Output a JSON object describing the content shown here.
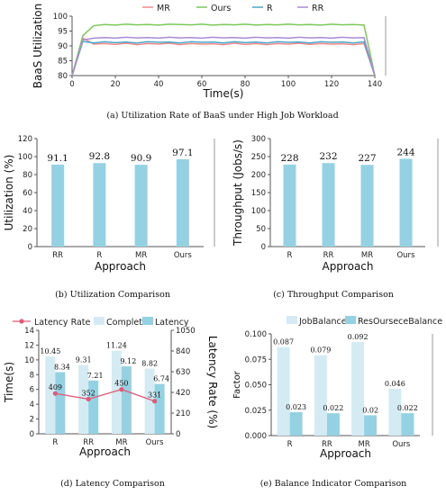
{
  "colors": {
    "mr": "#f08a8a",
    "ours": "#7ac95a",
    "r": "#4ba7c9",
    "rr": "#a98bd6",
    "bar": "#94d1e2",
    "bar_light": "#d4ebf4",
    "latency_rate": "#e05a78",
    "axis": "#555555"
  },
  "captions": {
    "a": "(a) Utilization Rate of BaaS under High Job Workload",
    "b": "(b) Utilization Comparison",
    "c": "(c) Throughput Comparison",
    "d": "(d) Latency Comparison",
    "e": "(e) Balance Indicator Comparison"
  },
  "chart_data": [
    {
      "id": "a",
      "type": "line",
      "title": "",
      "xlabel": "Time(s)",
      "ylabel": "BaaS Utilization",
      "xlim": [
        0,
        140
      ],
      "ylim": [
        80,
        100
      ],
      "xticks": [
        "0",
        "20",
        "40",
        "60",
        "80",
        "100",
        "120",
        "140"
      ],
      "yticks": [
        "80",
        "85",
        "90",
        "95",
        "100"
      ],
      "legend_position": "top",
      "x": [
        0,
        5,
        10,
        15,
        20,
        25,
        30,
        35,
        40,
        45,
        50,
        55,
        60,
        65,
        70,
        75,
        80,
        85,
        90,
        95,
        100,
        105,
        110,
        115,
        120,
        125,
        130,
        135,
        140
      ],
      "series": [
        {
          "name": "MR",
          "color_key": "mr",
          "values": [
            80,
            92.6,
            90.6,
            90.8,
            90.5,
            90.9,
            90.4,
            90.8,
            90.6,
            90.9,
            90.4,
            90.8,
            90.6,
            90.7,
            90.4,
            90.9,
            90.5,
            90.8,
            90.4,
            90.8,
            90.6,
            90.9,
            90.5,
            90.8,
            90.6,
            90.7,
            90.4,
            90.8,
            80
          ]
        },
        {
          "name": "Ours",
          "color_key": "ours",
          "values": [
            80,
            93.5,
            96.8,
            97.2,
            97.0,
            97.3,
            97.1,
            97.2,
            97.0,
            97.3,
            97.2,
            97.1,
            97.3,
            97.0,
            97.2,
            97.1,
            97.3,
            97.0,
            97.2,
            97.1,
            97.3,
            97.1,
            97.2,
            97.0,
            97.3,
            97.1,
            97.2,
            97.0,
            80
          ]
        },
        {
          "name": "R",
          "color_key": "r",
          "values": [
            80,
            91.5,
            91.0,
            91.4,
            91.1,
            91.3,
            91.0,
            91.4,
            91.2,
            91.3,
            91.0,
            91.4,
            91.2,
            91.3,
            91.0,
            91.4,
            91.1,
            91.3,
            91.0,
            91.4,
            91.2,
            91.3,
            91.0,
            91.4,
            91.2,
            91.3,
            91.0,
            91.4,
            80
          ]
        },
        {
          "name": "RR",
          "color_key": "rr",
          "values": [
            80,
            92.0,
            92.6,
            92.8,
            92.6,
            92.9,
            92.7,
            92.8,
            92.6,
            92.9,
            92.7,
            92.8,
            92.6,
            92.9,
            92.7,
            92.8,
            92.6,
            92.9,
            92.7,
            92.8,
            92.6,
            92.9,
            92.7,
            92.8,
            92.6,
            92.9,
            92.7,
            92.8,
            80
          ]
        }
      ]
    },
    {
      "id": "b",
      "type": "bar",
      "title": "",
      "xlabel": "Approach",
      "ylabel": "Utilization (%)",
      "ylim": [
        0,
        120
      ],
      "yticks": [
        "0",
        "20",
        "40",
        "60",
        "80",
        "100",
        "120"
      ],
      "categories": [
        "RR",
        "R",
        "MR",
        "Ours"
      ],
      "values": [
        91.1,
        92.8,
        90.9,
        97.1
      ],
      "labels": [
        "91.1",
        "92.8",
        "90.9",
        "97.1"
      ]
    },
    {
      "id": "c",
      "type": "bar",
      "title": "",
      "xlabel": "Approach",
      "ylabel": "Throughput (Jobs/s)",
      "ylim": [
        0,
        300
      ],
      "yticks": [
        "0",
        "50",
        "100",
        "150",
        "200",
        "250",
        "300"
      ],
      "categories": [
        "R",
        "RR",
        "MR",
        "Ours"
      ],
      "values": [
        228,
        232,
        227,
        244
      ],
      "labels": [
        "228",
        "232",
        "227",
        "244"
      ]
    },
    {
      "id": "d",
      "type": "bar",
      "title": "",
      "xlabel": "Approach",
      "ylabel": "Time(s)",
      "ylabel_right": "Latency Rate (%)",
      "ylim": [
        0,
        14
      ],
      "ylim_right": [
        0,
        1050
      ],
      "yticks": [
        "0",
        "2",
        "4",
        "6",
        "8",
        "10",
        "12",
        "14"
      ],
      "yticks_right": [
        "0",
        "210",
        "420",
        "630",
        "840",
        "1050"
      ],
      "legend_position": "top",
      "categories": [
        "R",
        "RR",
        "MR",
        "Ours"
      ],
      "series": [
        {
          "name": "Complete",
          "kind": "bar",
          "color_key": "bar_light",
          "values": [
            10.45,
            9.31,
            11.24,
            8.82
          ],
          "labels": [
            "10.45",
            "9.31",
            "11.24",
            "8.82"
          ]
        },
        {
          "name": "Latency",
          "kind": "bar",
          "color_key": "bar",
          "values": [
            8.34,
            7.21,
            9.12,
            6.74
          ],
          "labels": [
            "8.34",
            "7.21",
            "9.12",
            "6.74"
          ]
        },
        {
          "name": "Latency Rate",
          "kind": "line",
          "axis": "right",
          "color_key": "latency_rate",
          "values": [
            409,
            352,
            450,
            331
          ],
          "labels": [
            "409",
            "352",
            "450",
            "331"
          ]
        }
      ]
    },
    {
      "id": "e",
      "type": "bar",
      "title": "",
      "xlabel": "Approach",
      "ylabel": "Factor",
      "ylim": [
        0,
        0.1
      ],
      "yticks": [
        "0.000",
        "0.025",
        "0.050",
        "0.075",
        "0.100"
      ],
      "legend_position": "top",
      "categories": [
        "R",
        "RR",
        "MR",
        "Ours"
      ],
      "series": [
        {
          "name": "JobBalance",
          "color_key": "bar_light",
          "values": [
            0.087,
            0.079,
            0.092,
            0.046
          ],
          "labels": [
            "0.087",
            "0.079",
            "0.092",
            "0.046"
          ]
        },
        {
          "name": "ResOurseceBalance",
          "color_key": "bar",
          "values": [
            0.023,
            0.022,
            0.02,
            0.022
          ],
          "labels": [
            "0.023",
            "0.022",
            "0.02",
            "0.022"
          ]
        }
      ]
    }
  ]
}
